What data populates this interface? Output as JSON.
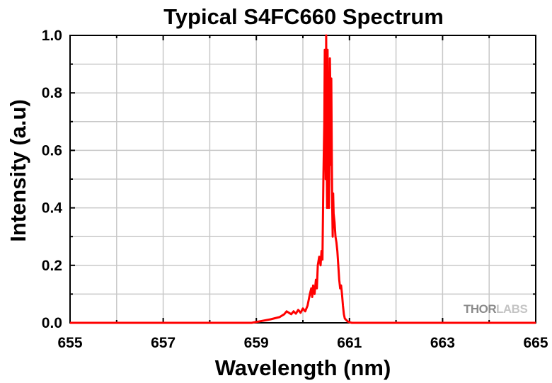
{
  "chart_data": {
    "type": "line",
    "title": "Typical S4FC660 Spectrum",
    "xlabel": "Wavelength (nm)",
    "ylabel": "Intensity (a.u)",
    "xlim": [
      655,
      665
    ],
    "ylim": [
      0.0,
      1.0
    ],
    "x_ticks": [
      "655",
      "657",
      "659",
      "661",
      "663",
      "665"
    ],
    "x_tick_values": [
      655,
      657,
      659,
      661,
      663,
      665
    ],
    "y_ticks": [
      "0.0",
      "0.2",
      "0.4",
      "0.6",
      "0.8",
      "1.0"
    ],
    "y_tick_values": [
      0.0,
      0.2,
      0.4,
      0.6,
      0.8,
      1.0
    ],
    "grid": true,
    "series": [
      {
        "color": "#ff0000",
        "x": [
          655.0,
          658.9,
          659.0,
          659.1,
          659.3,
          659.5,
          659.6,
          659.65,
          659.7,
          659.75,
          659.8,
          659.85,
          659.9,
          659.95,
          660.0,
          660.05,
          660.1,
          660.15,
          660.18,
          660.2,
          660.22,
          660.25,
          660.28,
          660.3,
          660.32,
          660.35,
          660.38,
          660.4,
          660.42,
          660.44,
          660.46,
          660.47,
          660.48,
          660.49,
          660.5,
          660.51,
          660.52,
          660.53,
          660.54,
          660.55,
          660.56,
          660.57,
          660.58,
          660.59,
          660.6,
          660.61,
          660.62,
          660.63,
          660.64,
          660.65,
          660.66,
          660.68,
          660.7,
          660.72,
          660.74,
          660.76,
          660.78,
          660.8,
          660.82,
          660.84,
          660.86,
          660.88,
          660.9,
          660.93,
          660.96,
          661.0,
          661.05,
          661.1,
          665.0
        ],
        "y": [
          0.0,
          0.0,
          0.003,
          0.006,
          0.012,
          0.02,
          0.03,
          0.04,
          0.035,
          0.03,
          0.04,
          0.032,
          0.045,
          0.035,
          0.05,
          0.04,
          0.06,
          0.1,
          0.12,
          0.09,
          0.13,
          0.1,
          0.15,
          0.12,
          0.2,
          0.23,
          0.2,
          0.25,
          0.22,
          0.5,
          0.7,
          0.95,
          0.88,
          0.5,
          1.0,
          0.6,
          0.4,
          0.95,
          0.7,
          0.5,
          0.4,
          0.55,
          0.92,
          0.8,
          0.55,
          0.85,
          0.6,
          0.4,
          0.3,
          0.45,
          0.38,
          0.35,
          0.3,
          0.28,
          0.25,
          0.2,
          0.15,
          0.12,
          0.13,
          0.1,
          0.06,
          0.03,
          0.015,
          0.01,
          0.005,
          0.002,
          0.0,
          0.0,
          0.0
        ]
      }
    ]
  },
  "watermark": {
    "part1": "THOR",
    "part2": "LABS"
  }
}
